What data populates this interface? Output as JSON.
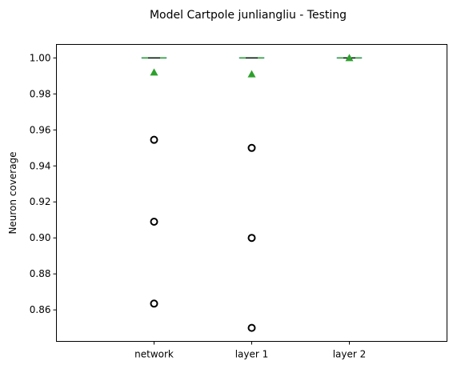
{
  "chart_data": {
    "type": "box",
    "title": "Model Cartpole junliangliu - Testing",
    "xlabel": "",
    "ylabel": "Neuron coverage",
    "categories": [
      "network",
      "layer 1",
      "layer 2"
    ],
    "ylim": [
      0.8425,
      1.0075
    ],
    "yticks": [
      0.86,
      0.88,
      0.9,
      0.92,
      0.94,
      0.96,
      0.98,
      1.0
    ],
    "ytick_labels": [
      "0.86",
      "0.88",
      "0.90",
      "0.92",
      "0.94",
      "0.96",
      "0.98",
      "1.00"
    ],
    "grid": false,
    "boxes": [
      {
        "category": "network",
        "q1": 1.0,
        "median": 1.0,
        "q3": 1.0,
        "whisker_low": 1.0,
        "whisker_high": 1.0,
        "mean": 0.992,
        "outliers": [
          0.9545,
          0.909,
          0.8635
        ]
      },
      {
        "category": "layer 1",
        "q1": 1.0,
        "median": 1.0,
        "q3": 1.0,
        "whisker_low": 1.0,
        "whisker_high": 1.0,
        "mean": 0.991,
        "outliers": [
          0.95,
          0.9,
          0.85
        ]
      },
      {
        "category": "layer 2",
        "q1": 1.0,
        "median": 1.0,
        "q3": 1.0,
        "whisker_low": 1.0,
        "whisker_high": 1.0,
        "mean": 1.0,
        "outliers": []
      }
    ],
    "colors": {
      "box": "#1f77b4",
      "median": "#2ca02c",
      "mean_marker": "#2ca02c",
      "outlier": "#000000"
    }
  }
}
